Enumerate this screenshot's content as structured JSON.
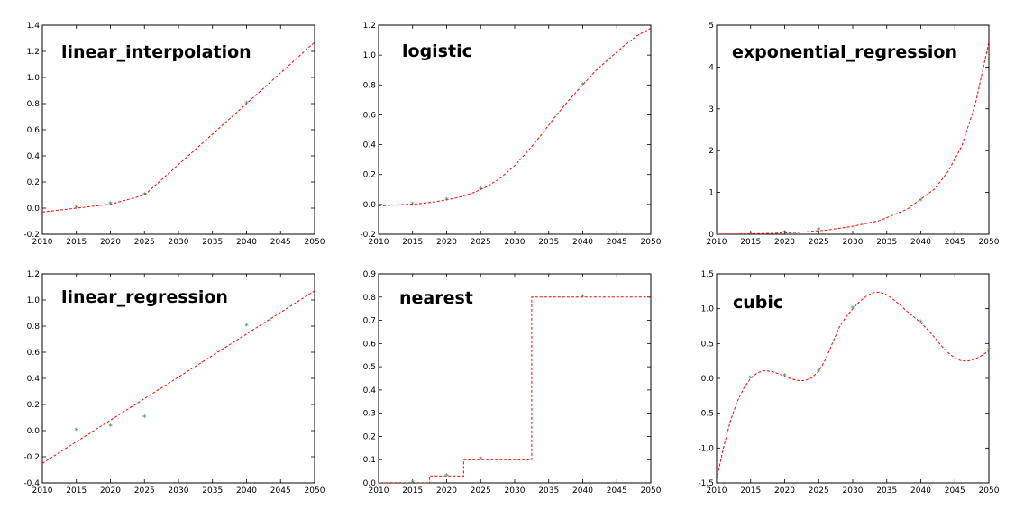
{
  "chart_data": [
    {
      "type": "line",
      "title": "linear_interpolation",
      "xlim": [
        2010,
        2050
      ],
      "ylim": [
        -0.2,
        1.4
      ],
      "xticks": [
        2010,
        2015,
        2020,
        2025,
        2030,
        2035,
        2040,
        2045,
        2050
      ],
      "yticks": [
        -0.2,
        0.0,
        0.2,
        0.4,
        0.6,
        0.8,
        1.0,
        1.2,
        1.4
      ],
      "series": [
        {
          "kind": "scatter",
          "x": [
            2015,
            2020,
            2025,
            2040
          ],
          "y": [
            0.0,
            0.03,
            0.1,
            0.8
          ]
        },
        {
          "kind": "line",
          "x": [
            2010,
            2015,
            2020,
            2025,
            2040,
            2050
          ],
          "y": [
            -0.03,
            0.0,
            0.03,
            0.1,
            0.8,
            1.27
          ]
        }
      ]
    },
    {
      "type": "line",
      "title": "logistic",
      "xlim": [
        2010,
        2050
      ],
      "ylim": [
        -0.2,
        1.2
      ],
      "xticks": [
        2010,
        2015,
        2020,
        2025,
        2030,
        2035,
        2040,
        2045,
        2050
      ],
      "yticks": [
        -0.2,
        0.0,
        0.2,
        0.4,
        0.6,
        0.8,
        1.0,
        1.2
      ],
      "series": [
        {
          "kind": "scatter",
          "x": [
            2015,
            2020,
            2025,
            2040
          ],
          "y": [
            0.0,
            0.03,
            0.1,
            0.8
          ]
        },
        {
          "kind": "line",
          "x": [
            2010,
            2012,
            2014,
            2016,
            2018,
            2020,
            2022,
            2024,
            2026,
            2028,
            2030,
            2032,
            2034,
            2036,
            2038,
            2040,
            2042,
            2044,
            2046,
            2048,
            2050
          ],
          "y": [
            -0.01,
            -0.005,
            0.0,
            0.005,
            0.015,
            0.03,
            0.05,
            0.08,
            0.12,
            0.18,
            0.26,
            0.36,
            0.47,
            0.59,
            0.7,
            0.8,
            0.9,
            0.98,
            1.06,
            1.13,
            1.18
          ]
        }
      ]
    },
    {
      "type": "line",
      "title": "exponential_regression",
      "xlim": [
        2010,
        2050
      ],
      "ylim": [
        0,
        5
      ],
      "xticks": [
        2010,
        2015,
        2020,
        2025,
        2030,
        2035,
        2040,
        2045,
        2050
      ],
      "yticks": [
        0,
        1,
        2,
        3,
        4,
        5
      ],
      "series": [
        {
          "kind": "scatter",
          "x": [
            2015,
            2020,
            2025,
            2040
          ],
          "y": [
            0.0,
            0.03,
            0.1,
            0.8
          ]
        },
        {
          "kind": "line",
          "x": [
            2010,
            2014,
            2018,
            2022,
            2026,
            2030,
            2034,
            2038,
            2042,
            2044,
            2046,
            2048,
            2050
          ],
          "y": [
            0.003,
            0.008,
            0.02,
            0.045,
            0.095,
            0.19,
            0.33,
            0.6,
            1.08,
            1.5,
            2.1,
            3.1,
            4.6
          ]
        }
      ]
    },
    {
      "type": "line",
      "title": "linear_regression",
      "xlim": [
        2010,
        2050
      ],
      "ylim": [
        -0.4,
        1.2
      ],
      "xticks": [
        2010,
        2015,
        2020,
        2025,
        2030,
        2035,
        2040,
        2045,
        2050
      ],
      "yticks": [
        -0.4,
        -0.2,
        0.0,
        0.2,
        0.4,
        0.6,
        0.8,
        1.0,
        1.2
      ],
      "series": [
        {
          "kind": "scatter",
          "x": [
            2015,
            2020,
            2025,
            2040
          ],
          "y": [
            0.0,
            0.03,
            0.1,
            0.8
          ]
        },
        {
          "kind": "line",
          "x": [
            2010,
            2050
          ],
          "y": [
            -0.25,
            1.07
          ]
        }
      ]
    },
    {
      "type": "line",
      "title": "nearest",
      "xlim": [
        2010,
        2050
      ],
      "ylim": [
        0.0,
        0.9
      ],
      "xticks": [
        2010,
        2015,
        2020,
        2025,
        2030,
        2035,
        2040,
        2045,
        2050
      ],
      "yticks": [
        0.0,
        0.1,
        0.2,
        0.3,
        0.4,
        0.5,
        0.6,
        0.7,
        0.8,
        0.9
      ],
      "series": [
        {
          "kind": "scatter",
          "x": [
            2015,
            2020,
            2025,
            2040
          ],
          "y": [
            0.0,
            0.03,
            0.1,
            0.8
          ]
        },
        {
          "kind": "line",
          "x": [
            2010,
            2017.5,
            2017.5,
            2022.5,
            2022.5,
            2032.5,
            2032.5,
            2050
          ],
          "y": [
            0.0,
            0.0,
            0.03,
            0.03,
            0.1,
            0.1,
            0.8,
            0.8
          ]
        }
      ]
    },
    {
      "type": "line",
      "title": "cubic",
      "xlim": [
        2010,
        2050
      ],
      "ylim": [
        -1.5,
        1.5
      ],
      "xticks": [
        2010,
        2015,
        2020,
        2025,
        2030,
        2035,
        2040,
        2045,
        2050
      ],
      "yticks": [
        -1.5,
        -1.0,
        -0.5,
        0.0,
        0.5,
        1.0,
        1.5
      ],
      "series": [
        {
          "kind": "scatter",
          "x": [
            2015,
            2020,
            2025,
            2030,
            2040,
            2050
          ],
          "y": [
            0.0,
            0.03,
            0.1,
            1.0,
            0.8,
            0.4
          ]
        },
        {
          "kind": "line",
          "x": [
            2010,
            2011,
            2012,
            2013,
            2014,
            2015,
            2016,
            2017,
            2018,
            2019,
            2020,
            2021,
            2022,
            2023,
            2024,
            2025,
            2026,
            2027,
            2028,
            2029,
            2030,
            2031,
            2032,
            2033,
            2034,
            2035,
            2036,
            2037,
            2038,
            2039,
            2040,
            2041,
            2042,
            2043,
            2044,
            2045,
            2046,
            2047,
            2048,
            2049,
            2050
          ],
          "y": [
            -1.45,
            -1.0,
            -0.62,
            -0.34,
            -0.14,
            0.0,
            0.08,
            0.11,
            0.1,
            0.07,
            0.03,
            -0.01,
            -0.03,
            -0.03,
            0.01,
            0.1,
            0.27,
            0.5,
            0.73,
            0.88,
            1.0,
            1.1,
            1.18,
            1.23,
            1.24,
            1.2,
            1.13,
            1.05,
            0.96,
            0.88,
            0.8,
            0.7,
            0.59,
            0.47,
            0.37,
            0.29,
            0.25,
            0.25,
            0.28,
            0.33,
            0.4
          ]
        }
      ]
    }
  ],
  "colors": {
    "line": "#ff0000",
    "marker": "#2e8b57",
    "axes": "#000000"
  }
}
